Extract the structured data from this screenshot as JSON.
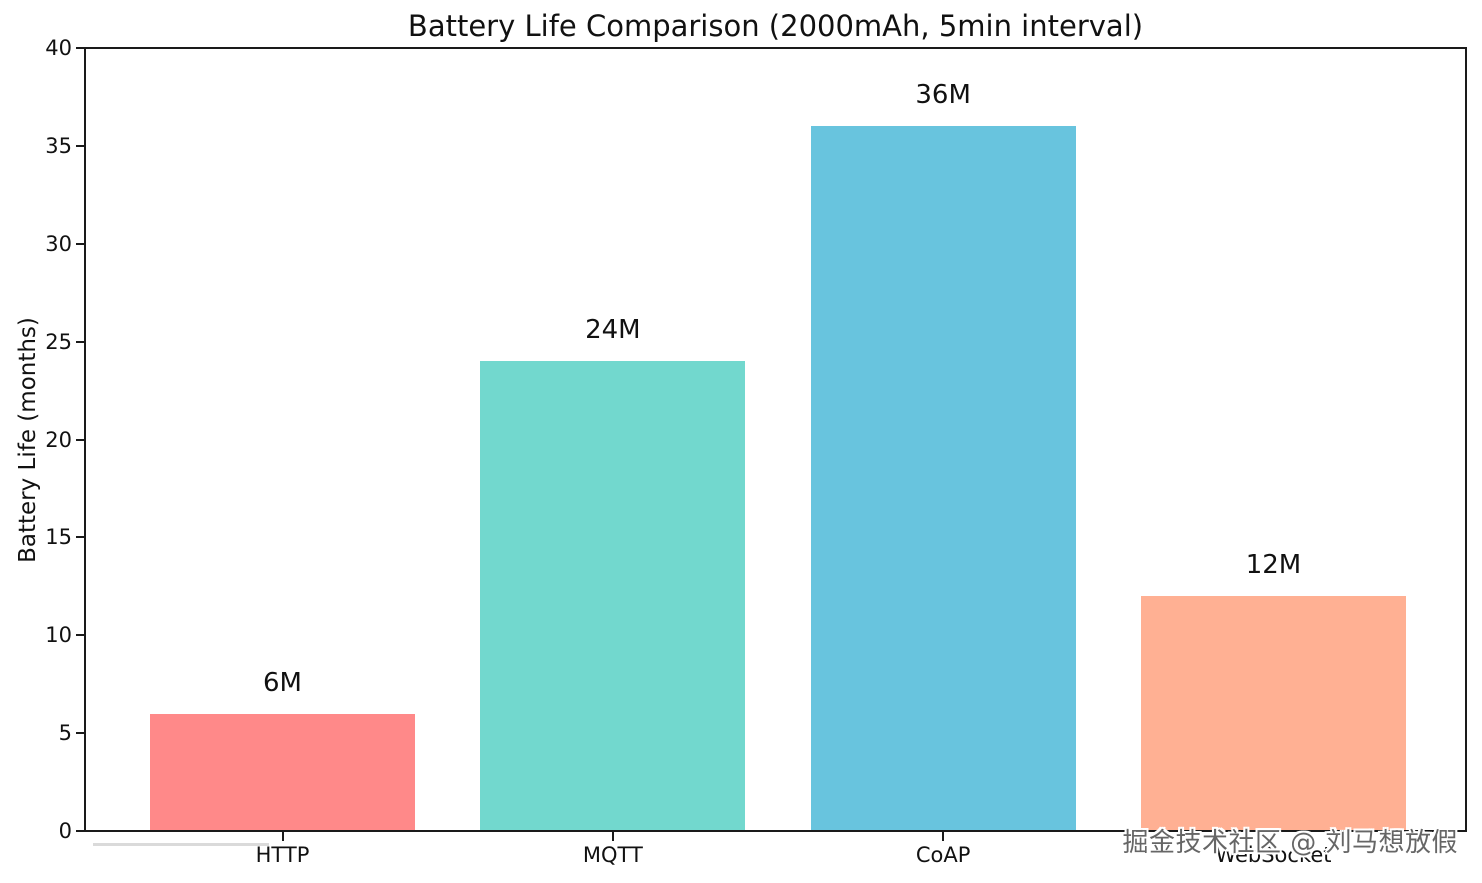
{
  "chart_data": {
    "type": "bar",
    "title": "Battery Life Comparison (2000mAh, 5min interval)",
    "categories": [
      "HTTP",
      "MQTT",
      "CoAP",
      "WebSocket"
    ],
    "values": [
      6,
      24,
      36,
      12
    ],
    "bar_labels": [
      "6M",
      "24M",
      "36M",
      "12M"
    ],
    "bar_colors": [
      "#FF8989",
      "#72D8CE",
      "#68C4DE",
      "#FFB093"
    ],
    "xlabel": "",
    "ylabel": "Battery Life (months)",
    "ylim": [
      0,
      40
    ],
    "yticks": [
      0,
      5,
      10,
      15,
      20,
      25,
      30,
      35,
      40
    ],
    "grid": false,
    "legend": "none",
    "axis_color": "#1a1a1a",
    "text_color": "#111111",
    "background": "#ffffff"
  },
  "watermark": {
    "text": "掘金技术社区 @ 刘马想放假"
  }
}
